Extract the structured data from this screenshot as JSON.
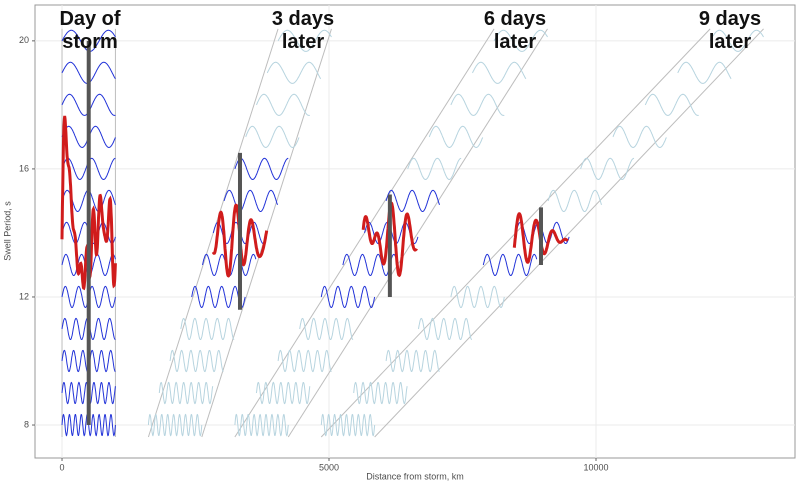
{
  "chart_data": {
    "type": "swell",
    "xlabel": "Distance from storm, km",
    "ylabel": "Swell Period, s",
    "xlim": [
      -506,
      13727
    ],
    "ylim": [
      6.97,
      21.12
    ],
    "xticks": [
      0,
      5000,
      10000
    ],
    "yticks": [
      8,
      12,
      16,
      20
    ],
    "grid": true,
    "wave_color": "#2233d8",
    "faded_color": "#b7d4df",
    "packet_color": "#d01c1c",
    "bar_color": "#555555",
    "envelope_color": "#bdbdbd",
    "periods": [
      8,
      9,
      10,
      11,
      12,
      13,
      14,
      15,
      16,
      17,
      18,
      19,
      20
    ],
    "width_km": 1000,
    "packet_period": 13.8,
    "panels": [
      {
        "label": "Day of storm",
        "start_km": [
          0,
          0,
          0,
          0,
          0,
          0,
          0,
          0,
          0,
          0,
          0,
          0,
          0
        ],
        "bar_x": 500,
        "bar_range": [
          8,
          20
        ]
      },
      {
        "label": "3 days later",
        "start_km": [
          1618,
          1821,
          2023,
          2225,
          2428,
          2630,
          2832,
          3035,
          3237,
          3439,
          3641,
          3844,
          4046
        ],
        "bar_x": 3333,
        "bar_range": [
          11.6,
          16.5
        ]
      },
      {
        "label": "6 days later",
        "start_km": [
          3237,
          3641,
          4046,
          4451,
          4855,
          5260,
          5665,
          6069,
          6474,
          6878,
          7283,
          7687,
          8092
        ],
        "bar_x": 6140,
        "bar_range": [
          12,
          15.2
        ]
      },
      {
        "label": "9 days later",
        "start_km": [
          4855,
          5462,
          6069,
          6676,
          7283,
          7890,
          8497,
          9104,
          9711,
          10318,
          10924,
          11531,
          12138
        ],
        "bar_x": 8970,
        "bar_range": [
          13,
          14.8
        ]
      }
    ]
  }
}
